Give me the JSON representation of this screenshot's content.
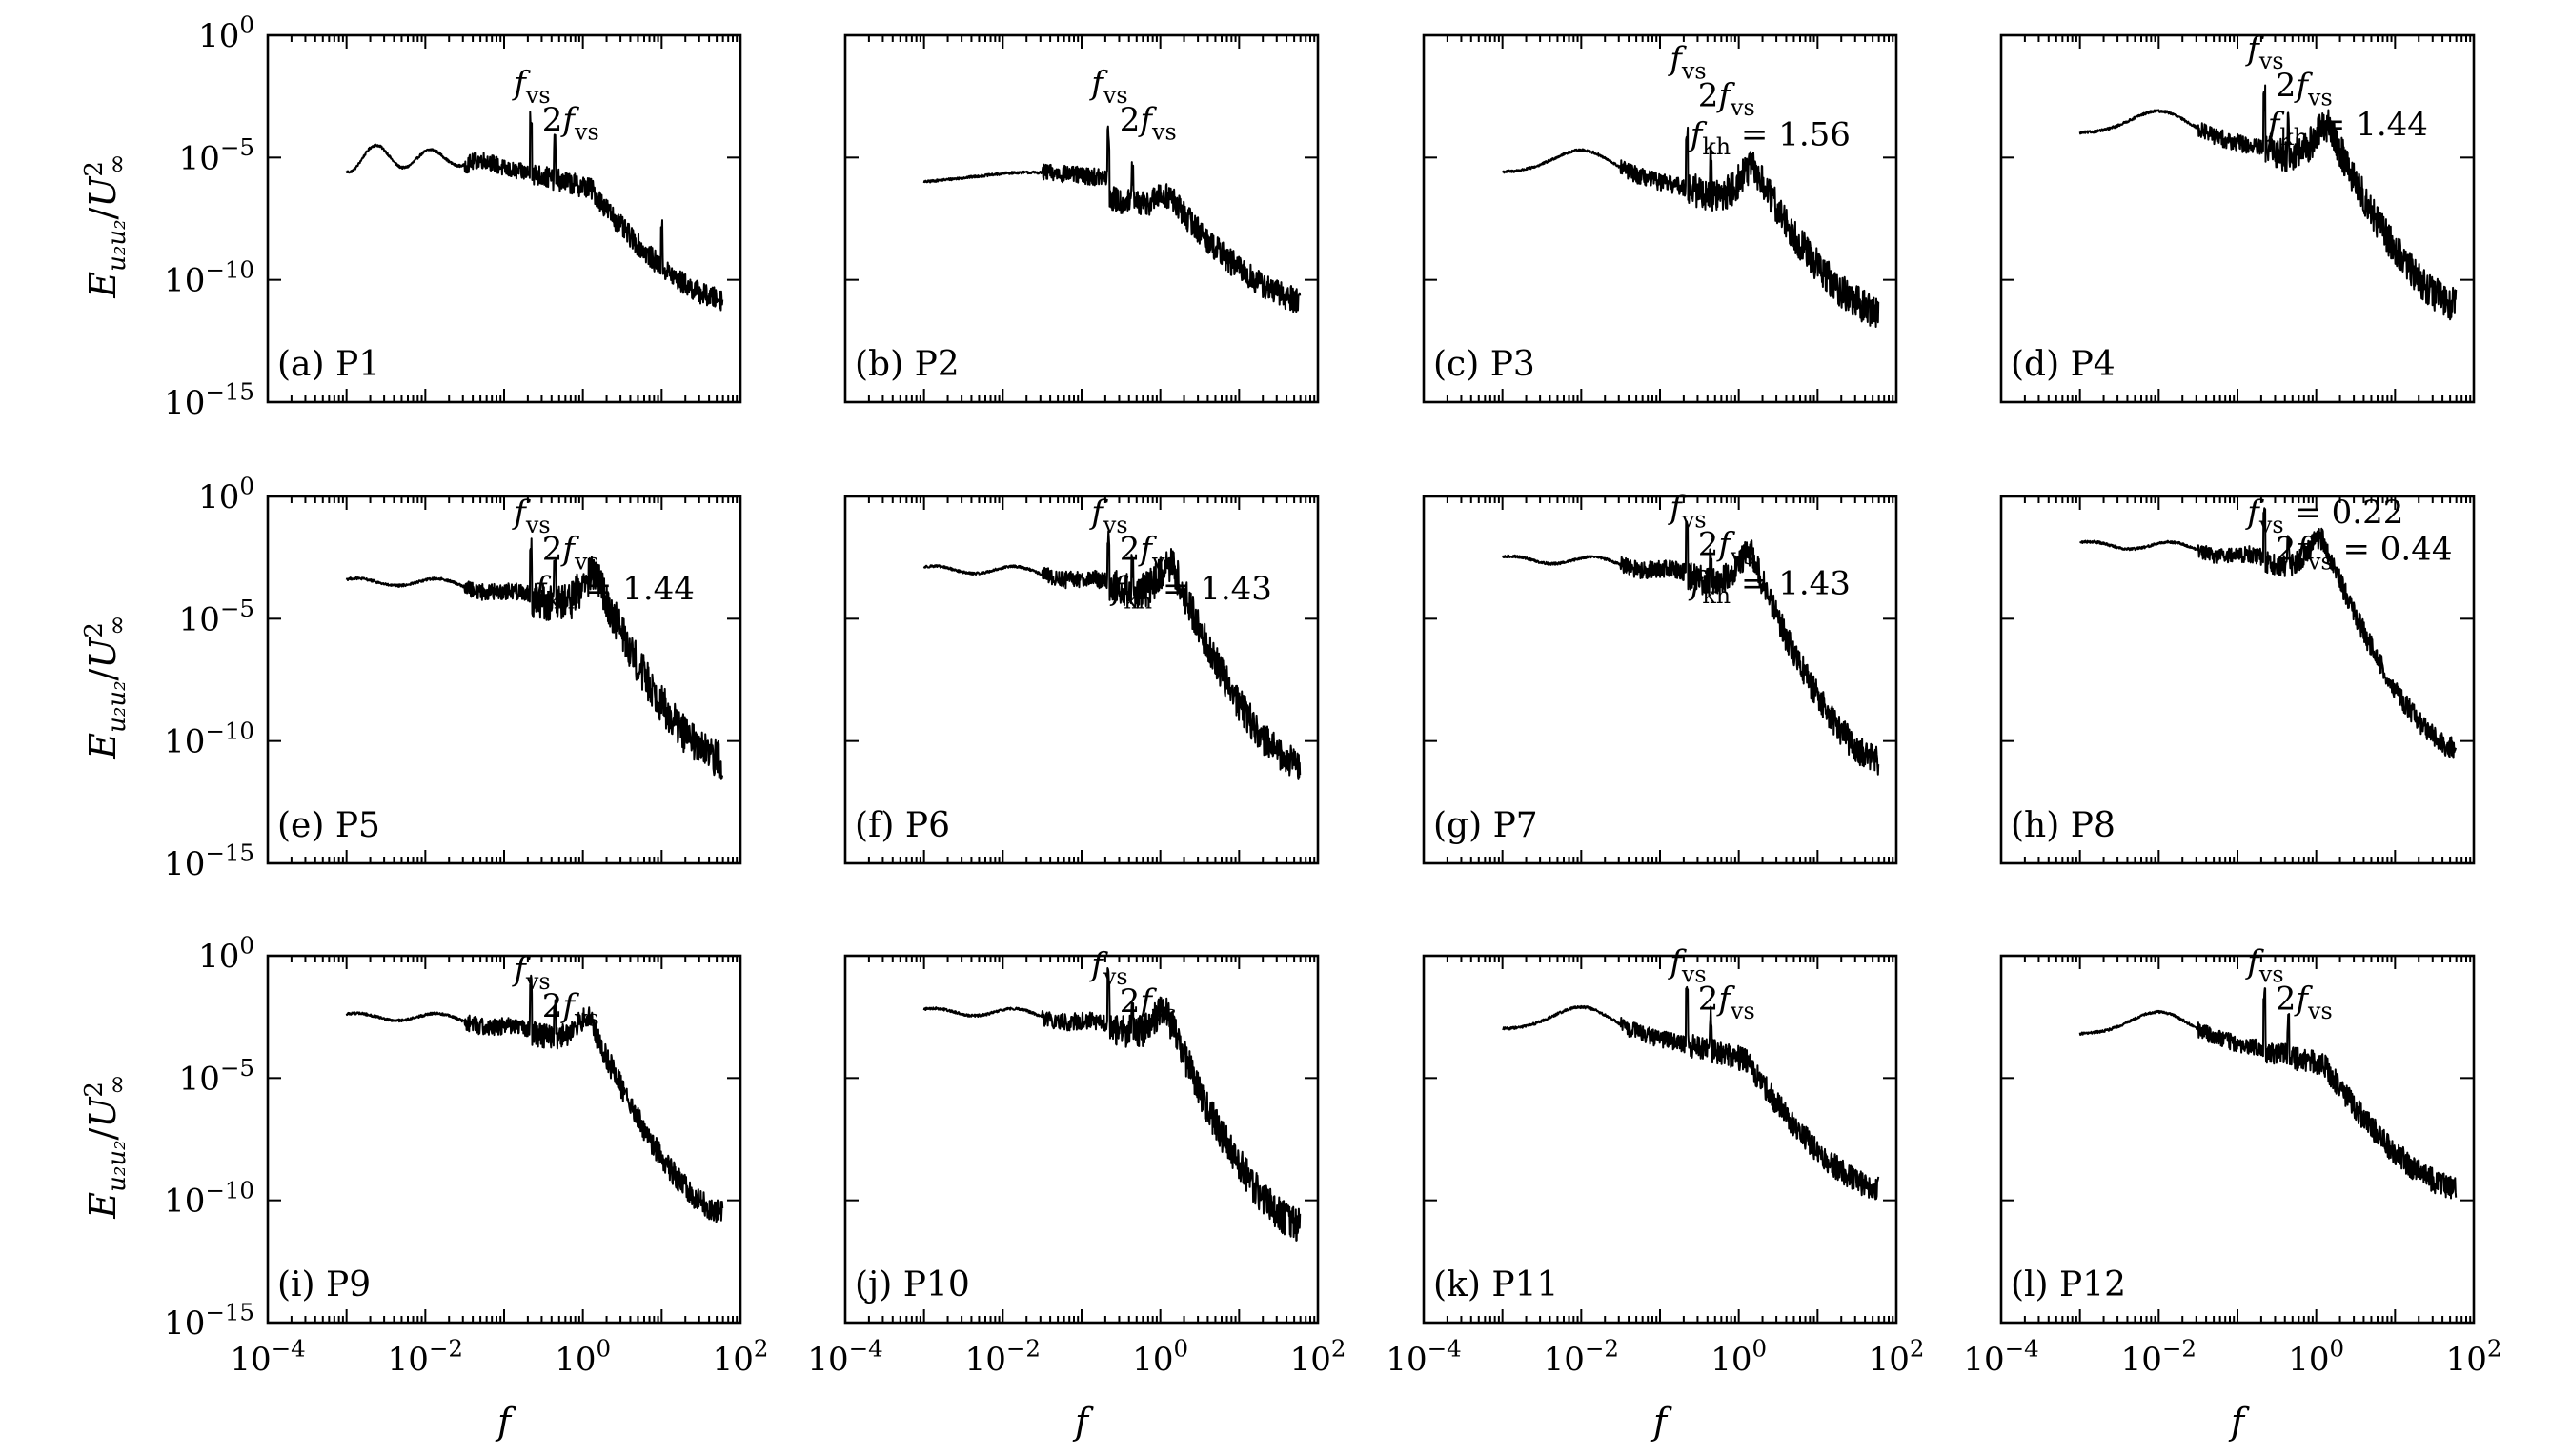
{
  "chart_data": {
    "type": "line",
    "layout": "3 rows x 4 columns of log-log spectra",
    "xlabel": "f",
    "ylabel": "E_{u2u2}/U∞²",
    "xscale": "log",
    "yscale": "log",
    "xlim": [
      0.0001,
      100
    ],
    "ylim": [
      1e-15,
      1
    ],
    "xtick_values": [
      0.0001,
      0.01,
      1,
      100
    ],
    "xtick_labels": [
      {
        "base": "10",
        "exp": "−4"
      },
      {
        "base": "10",
        "exp": "−2"
      },
      {
        "base": "10",
        "exp": "0"
      },
      {
        "base": "10",
        "exp": "2"
      }
    ],
    "ytick_values": [
      1,
      1e-05,
      1e-10,
      1e-15
    ],
    "ytick_labels": [
      {
        "base": "10",
        "exp": "0"
      },
      {
        "base": "10",
        "exp": "−5"
      },
      {
        "base": "10",
        "exp": "−10"
      },
      {
        "base": "10",
        "exp": "−15"
      }
    ],
    "panels": [
      {
        "label": "(a) P1",
        "f_vs": 0.22,
        "start_level": -5.0,
        "low_shape": "osc",
        "vs_amp": 2.3,
        "kh_f": null,
        "hump": 0,
        "high_level": -10.8,
        "noise": 0.45,
        "extra_peak": 10,
        "annotations": [
          {
            "text": "f_vs",
            "f": 0.22,
            "level": -2.4
          },
          {
            "text": "2f_vs",
            "f": 0.5,
            "level": -3.9
          }
        ]
      },
      {
        "label": "(b) P2",
        "f_vs": 0.22,
        "start_level": -6.0,
        "low_shape": "rise",
        "vs_amp": 2.0,
        "kh_f": 1.3,
        "hump": 0.7,
        "high_level": -10.8,
        "noise": 0.55,
        "extra_peak": null,
        "annotations": [
          {
            "text": "f_vs",
            "f": 0.22,
            "level": -2.4
          },
          {
            "text": "2f_vs",
            "f": 0.5,
            "level": -3.9
          }
        ]
      },
      {
        "label": "(c) P3",
        "f_vs": 0.22,
        "start_level": -5.6,
        "low_shape": "bump",
        "vs_amp": 2.2,
        "kh_f": 1.56,
        "hump": 1.5,
        "high_level": -11.3,
        "noise": 0.7,
        "extra_peak": null,
        "annotations": [
          {
            "text": "f_vs",
            "f": 0.22,
            "level": -1.4
          },
          {
            "text": "2f_vs",
            "f": 0.5,
            "level": -2.9
          },
          {
            "text": "f_kh = 1.56",
            "f": 0.4,
            "level": -4.5
          }
        ]
      },
      {
        "label": "(d) P4",
        "f_vs": 0.22,
        "start_level": -4.0,
        "low_shape": "bump",
        "vs_amp": 2.0,
        "kh_f": 1.44,
        "hump": 1.6,
        "high_level": -11.0,
        "noise": 0.7,
        "extra_peak": null,
        "annotations": [
          {
            "text": "f_vs",
            "f": 0.22,
            "level": -1.0
          },
          {
            "text": "2f_vs",
            "f": 0.5,
            "level": -2.5
          },
          {
            "text": "f_kh = 1.44",
            "f": 0.4,
            "level": -4.1
          }
        ]
      },
      {
        "label": "(e) P5",
        "f_vs": 0.22,
        "start_level": -3.5,
        "low_shape": "flat",
        "vs_amp": 1.8,
        "kh_f": 1.44,
        "hump": 1.6,
        "high_level": -10.8,
        "noise": 0.8,
        "extra_peak": null,
        "annotations": [
          {
            "text": "f_vs",
            "f": 0.22,
            "level": -1.1
          },
          {
            "text": "2f_vs",
            "f": 0.5,
            "level": -2.6
          },
          {
            "text": "f_kh = 1.44",
            "f": 0.4,
            "level": -4.2
          }
        ]
      },
      {
        "label": "(f) P6",
        "f_vs": 0.22,
        "start_level": -3.0,
        "low_shape": "flat",
        "vs_amp": 1.8,
        "kh_f": 1.43,
        "hump": 1.5,
        "high_level": -11.0,
        "noise": 0.7,
        "extra_peak": null,
        "annotations": [
          {
            "text": "f_vs",
            "f": 0.22,
            "level": -1.1
          },
          {
            "text": "2f_vs",
            "f": 0.5,
            "level": -2.6
          },
          {
            "text": "f_kh = 1.43",
            "f": 0.4,
            "level": -4.2
          }
        ]
      },
      {
        "label": "(g) P7",
        "f_vs": 0.22,
        "start_level": -2.6,
        "low_shape": "flat",
        "vs_amp": 1.8,
        "kh_f": 1.43,
        "hump": 1.6,
        "high_level": -10.8,
        "noise": 0.6,
        "extra_peak": null,
        "annotations": [
          {
            "text": "f_vs",
            "f": 0.22,
            "level": -0.9
          },
          {
            "text": "2f_vs",
            "f": 0.5,
            "level": -2.4
          },
          {
            "text": "f_kh = 1.43",
            "f": 0.4,
            "level": -4.0
          }
        ]
      },
      {
        "label": "(h) P8",
        "f_vs": 0.22,
        "start_level": -2.0,
        "low_shape": "flat",
        "vs_amp": 1.8,
        "kh_f": 1.2,
        "hump": 1.5,
        "high_level": -10.3,
        "noise": 0.45,
        "extra_peak": null,
        "annotations": [
          {
            "text": "f_vs = 0.22",
            "f": 0.22,
            "level": -1.1
          },
          {
            "text": "2f_vs = 0.44",
            "f": 0.5,
            "level": -2.6
          }
        ]
      },
      {
        "label": "(i) P9",
        "f_vs": 0.22,
        "start_level": -2.5,
        "low_shape": "flat",
        "vs_amp": 2.0,
        "kh_f": 1.2,
        "hump": 1.2,
        "high_level": -10.5,
        "noise": 0.5,
        "extra_peak": null,
        "annotations": [
          {
            "text": "f_vs",
            "f": 0.22,
            "level": -1.0
          },
          {
            "text": "2f_vs",
            "f": 0.5,
            "level": -2.5
          }
        ]
      },
      {
        "label": "(j) P10",
        "f_vs": 0.22,
        "start_level": -2.3,
        "low_shape": "flat",
        "vs_amp": 2.0,
        "kh_f": 1.2,
        "hump": 1.2,
        "high_level": -11.0,
        "noise": 0.7,
        "extra_peak": null,
        "annotations": [
          {
            "text": "f_vs",
            "f": 0.22,
            "level": -0.8
          },
          {
            "text": "2f_vs",
            "f": 0.5,
            "level": -2.3
          }
        ]
      },
      {
        "label": "(k) P11",
        "f_vs": 0.22,
        "start_level": -3.0,
        "low_shape": "bump",
        "vs_amp": 2.2,
        "kh_f": null,
        "hump": 0,
        "high_level": -9.5,
        "noise": 0.5,
        "extra_peak": null,
        "annotations": [
          {
            "text": "f_vs",
            "f": 0.22,
            "level": -0.7
          },
          {
            "text": "2f_vs",
            "f": 0.5,
            "level": -2.2
          }
        ]
      },
      {
        "label": "(l) P12",
        "f_vs": 0.22,
        "start_level": -3.2,
        "low_shape": "bump",
        "vs_amp": 2.2,
        "kh_f": null,
        "hump": 0,
        "high_level": -9.5,
        "noise": 0.5,
        "extra_peak": null,
        "annotations": [
          {
            "text": "f_vs",
            "f": 0.22,
            "level": -0.7
          },
          {
            "text": "2f_vs",
            "f": 0.5,
            "level": -2.2
          }
        ]
      }
    ]
  }
}
